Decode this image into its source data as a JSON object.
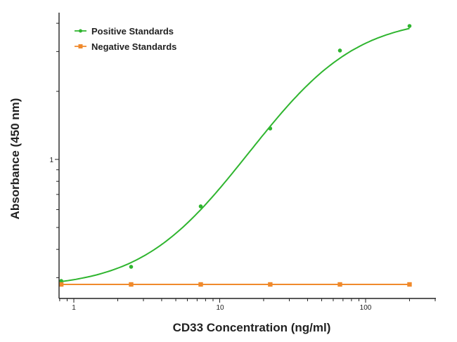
{
  "chart_data": {
    "type": "line",
    "xlabel": "CD33 Concentration (ng/ml)",
    "ylabel": "Absorbance (450 nm)",
    "x_scale": "log",
    "y_scale": "log",
    "xlim": [
      0.79,
      300
    ],
    "ylim": [
      0.243,
      4.45
    ],
    "x_tick_labels": [
      "1",
      "10",
      "100"
    ],
    "y_tick_labels": [
      "1"
    ],
    "grid": false,
    "legend_position": "top-left",
    "series": [
      {
        "name": "Positive Standards",
        "color": "#2fb52f",
        "marker": "circle",
        "x": [
          0.82,
          2.47,
          7.41,
          22.2,
          66.7,
          200
        ],
        "y": [
          0.29,
          0.335,
          0.62,
          1.37,
          3.03,
          3.89
        ],
        "fit": {
          "model": "4PL",
          "bottom": 0.27,
          "top": 4.25,
          "ec50": 44,
          "hill": 1.35
        }
      },
      {
        "name": "Negative Standards",
        "color": "#f08a2c",
        "marker": "square",
        "x": [
          0.82,
          2.47,
          7.41,
          22.2,
          66.7,
          200
        ],
        "y": [
          0.28,
          0.28,
          0.28,
          0.28,
          0.28,
          0.28
        ]
      }
    ]
  }
}
